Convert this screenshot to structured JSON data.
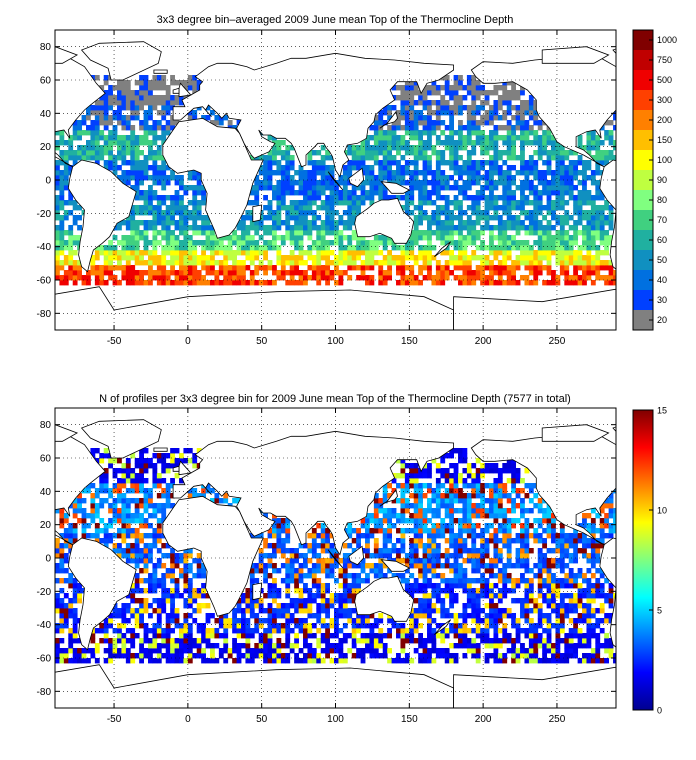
{
  "chart_data": [
    {
      "type": "heatmap",
      "title": "3x3 degree bin–averaged 2009 June mean Top of the Thermocline Depth",
      "xlim": [
        -90,
        290
      ],
      "ylim": [
        -90,
        90
      ],
      "x_ticks": [
        -50,
        0,
        50,
        100,
        150,
        200,
        250
      ],
      "y_ticks": [
        80,
        60,
        40,
        20,
        0,
        -20,
        -40,
        -60,
        -80
      ],
      "grid": true,
      "bin_size_deg": 3,
      "colorbar": {
        "labels": [
          "1000",
          "750",
          "500",
          "300",
          "200",
          "150",
          "100",
          "90",
          "80",
          "70",
          "60",
          "50",
          "40",
          "30",
          "20"
        ],
        "colors": [
          "#800000",
          "#c00000",
          "#f00000",
          "#ff4000",
          "#ff8000",
          "#ffbf00",
          "#ffff00",
          "#bfff40",
          "#80ff80",
          "#40d080",
          "#20b0a0",
          "#1090c0",
          "#0070e0",
          "#0040ff",
          "#808080"
        ]
      },
      "bands": [
        {
          "lat_min": -63,
          "lat_max": -51,
          "value": 200,
          "color": "#ff4000"
        },
        {
          "lat_min": -51,
          "lat_max": -42,
          "value": 100,
          "color": "#ffff00"
        },
        {
          "lat_min": -42,
          "lat_max": -30,
          "value": 70,
          "color": "#40d080"
        },
        {
          "lat_min": -30,
          "lat_max": -12,
          "value": 50,
          "color": "#1090c0"
        },
        {
          "lat_min": -12,
          "lat_max": 12,
          "value": 40,
          "color": "#0070e0"
        },
        {
          "lat_min": 12,
          "lat_max": 30,
          "value": 60,
          "color": "#20b0a0"
        },
        {
          "lat_min": 30,
          "lat_max": 45,
          "value": 30,
          "color": "#0040ff"
        },
        {
          "lat_min": 45,
          "lat_max": 63,
          "value": 20,
          "color": "#808080"
        }
      ]
    },
    {
      "type": "heatmap",
      "title": "N of profiles per 3x3 degree bin for 2009 June mean Top of the Thermocline Depth  (7577 in total)",
      "xlim": [
        -90,
        290
      ],
      "ylim": [
        -90,
        90
      ],
      "x_ticks": [
        -50,
        0,
        50,
        100,
        150,
        200,
        250
      ],
      "y_ticks": [
        80,
        60,
        40,
        20,
        0,
        -20,
        -40,
        -60,
        -80
      ],
      "grid": true,
      "bin_size_deg": 3,
      "colorbar": {
        "vmin": 0,
        "vmax": 15,
        "ticks": [
          "0",
          "5",
          "10",
          "15"
        ]
      },
      "total_profiles": 7577,
      "bands": [
        {
          "lat_min": -63,
          "lat_max": -45,
          "value": 2
        },
        {
          "lat_min": -45,
          "lat_max": -15,
          "value": 3
        },
        {
          "lat_min": -15,
          "lat_max": 15,
          "value": 4
        },
        {
          "lat_min": 15,
          "lat_max": 45,
          "value": 5
        },
        {
          "lat_min": 45,
          "lat_max": 66,
          "value": 2
        }
      ]
    }
  ]
}
